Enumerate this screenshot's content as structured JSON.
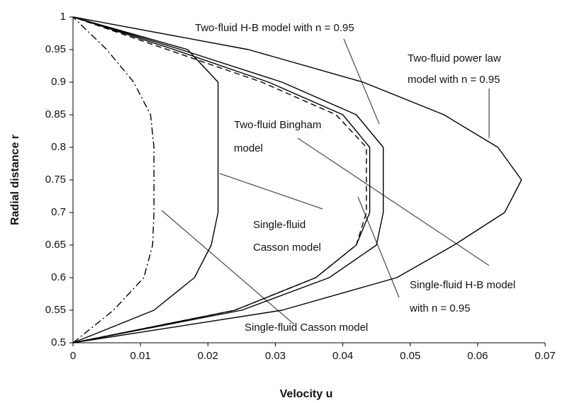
{
  "chart_data": {
    "type": "line",
    "xlabel": "Velocity  u",
    "ylabel": "Radial  distance  r",
    "xlim": [
      0,
      0.07
    ],
    "ylim": [
      0.5,
      1
    ],
    "xticks": [
      0,
      0.01,
      0.02,
      0.03,
      0.04,
      0.05,
      0.06,
      0.07
    ],
    "yticks": [
      0.5,
      0.55,
      0.6,
      0.65,
      0.7,
      0.75,
      0.8,
      0.85,
      0.9,
      0.95,
      1
    ],
    "r": [
      0.5,
      0.55,
      0.6,
      0.65,
      0.7,
      0.75,
      0.8,
      0.85,
      0.9,
      0.95,
      1
    ],
    "series": [
      {
        "color": "#000000",
        "dash": "solid",
        "values": [
          0,
          0.031,
          0.048,
          0.0565,
          0.064,
          0.0665,
          0.063,
          0.055,
          0.043,
          0.026,
          0
        ]
      },
      {
        "color": "#000000",
        "dash": "solid",
        "values": [
          0,
          0.025,
          0.038,
          0.045,
          0.046,
          0.046,
          0.046,
          0.042,
          0.031,
          0.016,
          0
        ]
      },
      {
        "color": "#000000",
        "dash": "solid",
        "values": [
          0,
          0.024,
          0.036,
          0.042,
          0.044,
          0.044,
          0.044,
          0.04,
          0.029,
          0.015,
          0
        ]
      },
      {
        "color": "#000000",
        "dash": "dashed",
        "values": [
          0,
          0.024,
          0.036,
          0.042,
          0.0435,
          0.0435,
          0.0435,
          0.039,
          0.028,
          0.014,
          0
        ]
      },
      {
        "color": "#000000",
        "dash": "solid",
        "values": [
          0,
          0.012,
          0.018,
          0.0205,
          0.0215,
          0.0215,
          0.0215,
          0.0215,
          0.0215,
          0.017,
          0
        ]
      },
      {
        "color": "#000000",
        "dash": "dashdot",
        "values": [
          0,
          0.006,
          0.0105,
          0.0118,
          0.012,
          0.012,
          0.012,
          0.0115,
          0.009,
          0.005,
          0
        ]
      }
    ],
    "annotations": [
      [
        "Two-fluid H-B model with n = 0.95"
      ],
      [
        "Two-fluid power law",
        "model with n = 0.95"
      ],
      [
        "Two-fluid Bingham",
        "model"
      ],
      [
        "Single-fluid",
        "Casson model"
      ],
      [
        "Single-fluid H-B model",
        "with n = 0.95"
      ],
      [
        "Single-fluid Casson model"
      ]
    ]
  }
}
